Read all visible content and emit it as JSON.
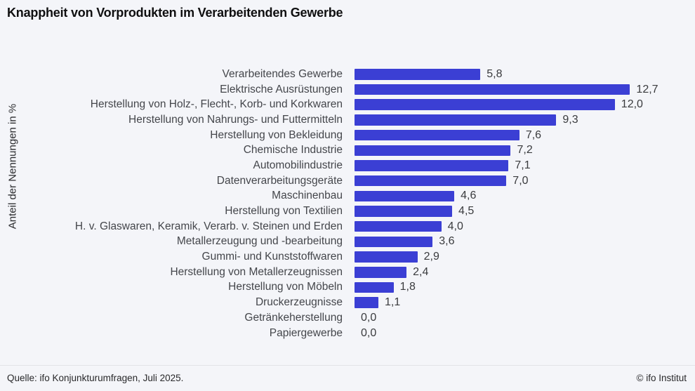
{
  "title": "Knappheit von Vorprodukten im Verarbeitenden Gewerbe",
  "ylabel": "Anteil der Nennungen in %",
  "footer": {
    "source": "Quelle: ifo Konjunkturumfragen, Juli 2025.",
    "copyright": "© ifo Institut"
  },
  "colors": {
    "background": "#f4f5f9",
    "bar": "#3b3fd4",
    "title": "#0f0f10",
    "category_label": "#44464b",
    "value_label": "#3a3b3e"
  },
  "chart_data": {
    "type": "bar",
    "orientation": "horizontal",
    "title": "Knappheit von Vorprodukten im Verarbeitenden Gewerbe",
    "ylabel": "Anteil der Nennungen in %",
    "xlabel": "",
    "xlim": [
      0,
      13.5
    ],
    "grid": false,
    "legend": false,
    "unit": "%",
    "decimal_style": "comma",
    "categories": [
      "Verarbeitendes Gewerbe",
      "Elektrische Ausrüstungen",
      "Herstellung von Holz-, Flecht-, Korb- und Korkwaren",
      "Herstellung von Nahrungs- und Futtermitteln",
      "Herstellung von Bekleidung",
      "Chemische Industrie",
      "Automobilindustrie",
      "Datenverarbeitungsgeräte",
      "Maschinenbau",
      "Herstellung von Textilien",
      "H. v. Glaswaren, Keramik, Verarb. v. Steinen und Erden",
      "Metallerzeugung und -bearbeitung",
      "Gummi- und Kunststoffwaren",
      "Herstellung von Metallerzeugnissen",
      "Herstellung von Möbeln",
      "Druckerzeugnisse",
      "Getränkeherstellung",
      "Papiergewerbe"
    ],
    "values": [
      5.8,
      12.7,
      12.0,
      9.3,
      7.6,
      7.2,
      7.1,
      7.0,
      4.6,
      4.5,
      4.0,
      3.6,
      2.9,
      2.4,
      1.8,
      1.1,
      0.0,
      0.0
    ],
    "value_labels": [
      "5,8",
      "12,7",
      "12,0",
      "9,3",
      "7,6",
      "7,2",
      "7,1",
      "7,0",
      "4,6",
      "4,5",
      "4,0",
      "3,6",
      "2,9",
      "2,4",
      "1,8",
      "1,1",
      "0,0",
      "0,0"
    ]
  }
}
